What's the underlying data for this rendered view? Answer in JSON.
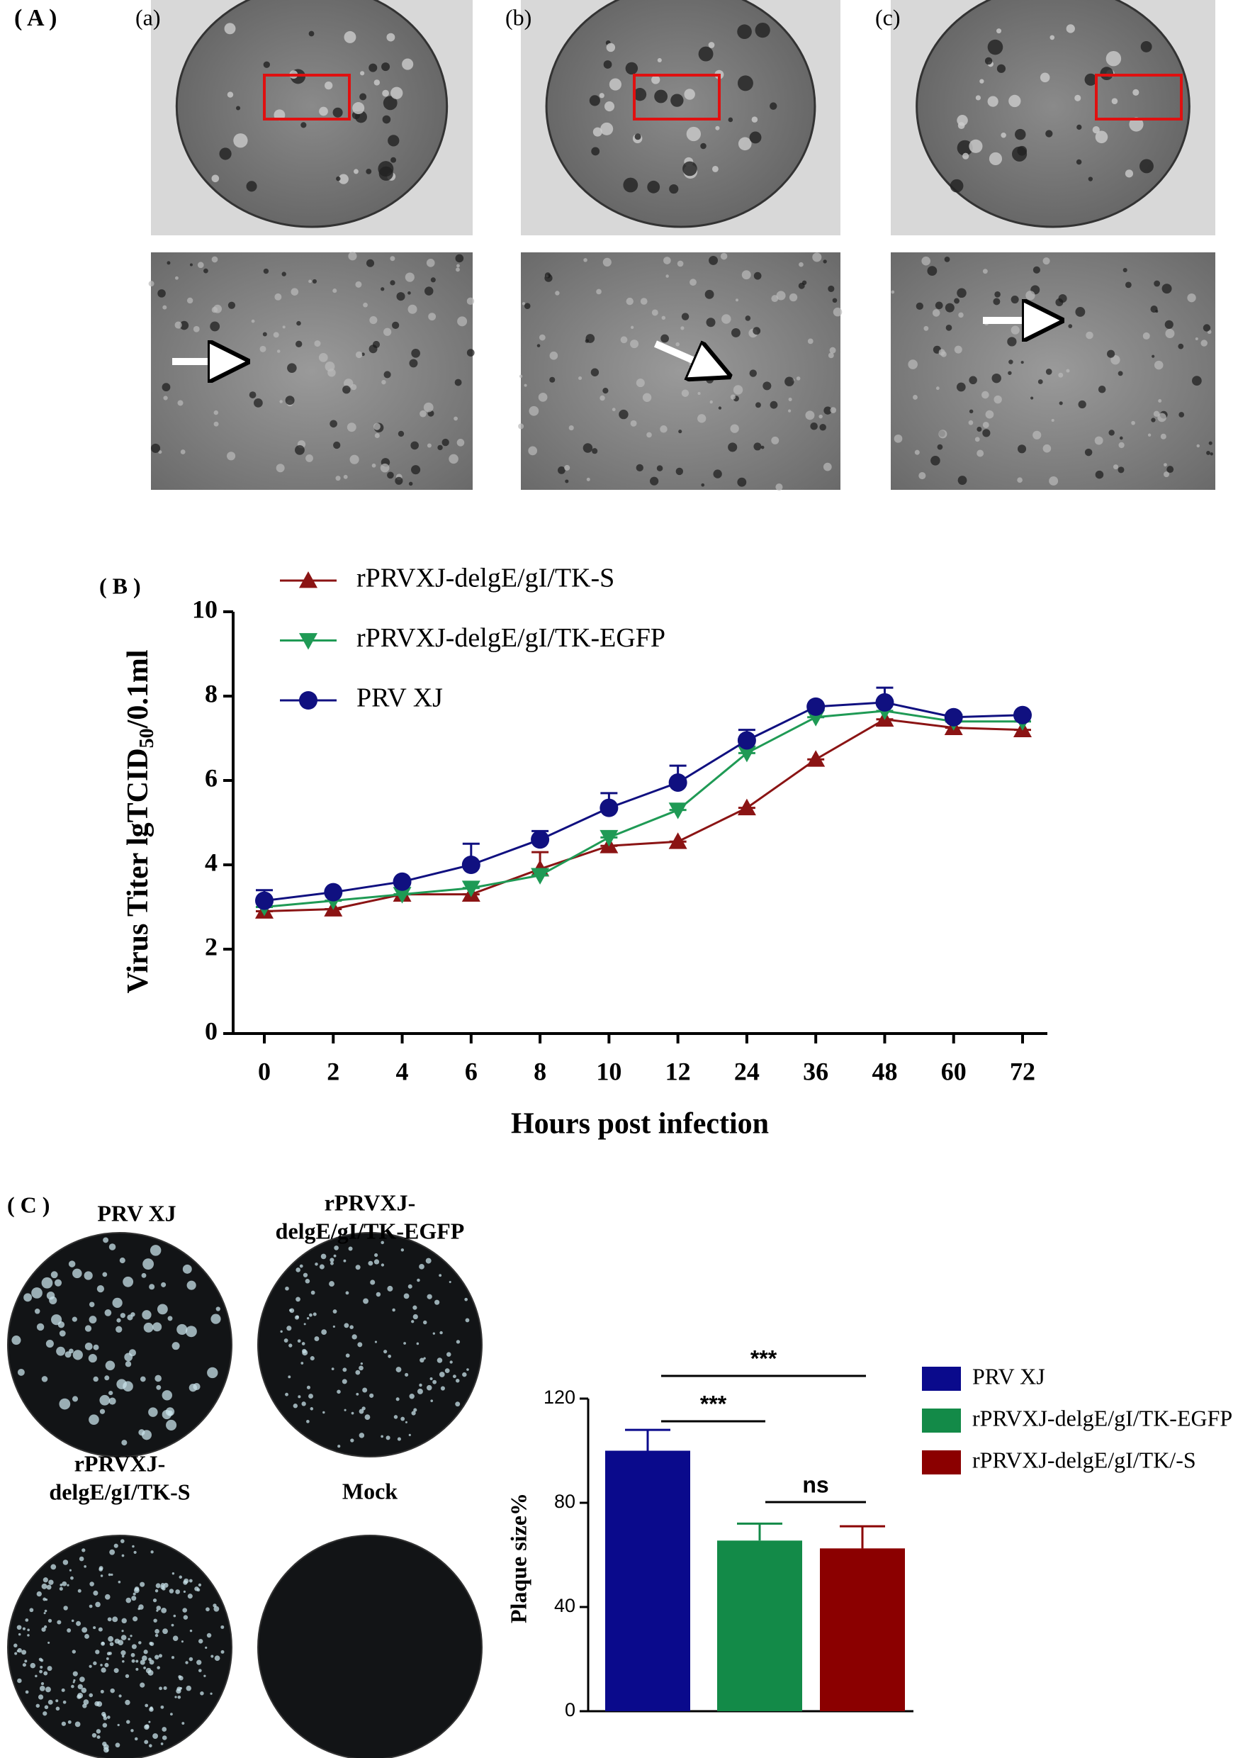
{
  "panel_a": {
    "label": "( A )",
    "sublabels": [
      "(a)",
      "(b)",
      "(c)"
    ]
  },
  "chart_data": [
    {
      "type": "line",
      "panel_label": "( B )",
      "categories": [
        "0",
        "2",
        "4",
        "6",
        "8",
        "10",
        "12",
        "24",
        "36",
        "48",
        "60",
        "72"
      ],
      "series": [
        {
          "name": "rPRVXJ-delgE/gI/TK-S",
          "color": "#8b1414",
          "marker": "triangle-up",
          "values": [
            2.9,
            2.95,
            3.3,
            3.3,
            3.9,
            4.45,
            4.55,
            5.35,
            6.5,
            7.45,
            7.25,
            7.2
          ],
          "errors": [
            0,
            0,
            0,
            0,
            0.4,
            0,
            0,
            0,
            0,
            0,
            0,
            0
          ]
        },
        {
          "name": "rPRVXJ-delgE/gI/TK-EGFP",
          "color": "#1f9a55",
          "marker": "triangle-down",
          "values": [
            3.0,
            3.15,
            3.3,
            3.45,
            3.75,
            4.65,
            5.3,
            6.65,
            7.5,
            7.65,
            7.4,
            7.4
          ],
          "errors": [
            0,
            0,
            0,
            0,
            0,
            0,
            0,
            0,
            0,
            0,
            0,
            0
          ]
        },
        {
          "name": "PRV XJ",
          "color": "#101080",
          "marker": "circle",
          "values": [
            3.15,
            3.35,
            3.6,
            4.0,
            4.6,
            5.35,
            5.95,
            6.95,
            7.75,
            7.85,
            7.5,
            7.55
          ],
          "errors": [
            0.25,
            0,
            0,
            0.5,
            0.2,
            0.35,
            0.4,
            0.25,
            0,
            0.35,
            0,
            0
          ]
        }
      ],
      "y_label_parts": [
        "Virus Titer lgTCID",
        "50",
        "/0.1ml"
      ],
      "x_label": "Hours post infection",
      "ylim": [
        0,
        10
      ],
      "yticks": [
        0,
        2,
        4,
        6,
        8,
        10
      ]
    },
    {
      "type": "bar",
      "series": [
        {
          "name": "PRV XJ",
          "color": "#0a0a8c",
          "values": [
            100
          ],
          "errors": [
            8
          ]
        },
        {
          "name": "rPRVXJ-delgE/gI/TK-EGFP",
          "color": "#138a48",
          "values": [
            65.5
          ],
          "errors": [
            6.5
          ]
        },
        {
          "name": "rPRVXJ-delgE/gI/TK/-S",
          "color": "#8b0000",
          "values": [
            62.5
          ],
          "errors": [
            8.5
          ]
        }
      ],
      "annotations": [
        "***",
        "***",
        "ns"
      ],
      "y_label": "Plaque size%",
      "ylim": [
        0,
        120
      ],
      "yticks": [
        0,
        40,
        80,
        120
      ]
    }
  ],
  "panel_c": {
    "label": "( C )",
    "plates": [
      [
        "PRV XJ"
      ],
      [
        "rPRVXJ-",
        "delgE/gI/TK-EGFP"
      ],
      [
        "rPRVXJ-",
        "delgE/gI/TK-S"
      ],
      [
        "Mock"
      ]
    ]
  }
}
